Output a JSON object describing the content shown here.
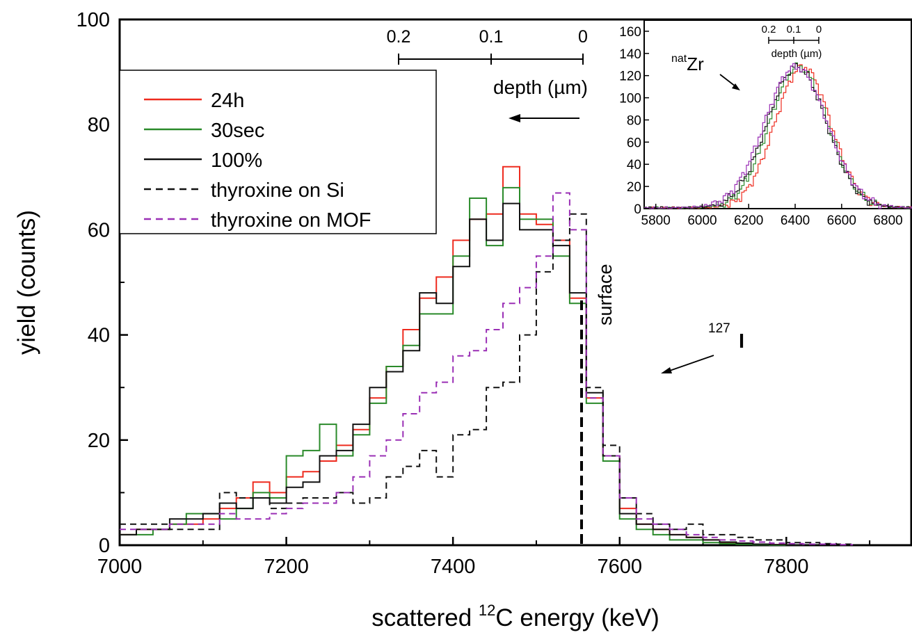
{
  "chart_data": [
    {
      "type": "line",
      "xlabel": "scattered ",
      "xlabel_sup": "12",
      "xlabel_rest": "C energy (keV)",
      "ylabel": "yield (counts)",
      "xlim": [
        7000,
        7950
      ],
      "ylim": [
        0,
        100
      ],
      "xticks": [
        "7000",
        "7200",
        "7400",
        "7600",
        "7800"
      ],
      "yticks": [
        "0",
        "20",
        "40",
        "60",
        "80",
        "100"
      ],
      "legend_position": "upper-left",
      "series": [
        {
          "name": "24h",
          "color": "#ee2b1f",
          "dash": "solid",
          "x": [
            7000,
            7020,
            7040,
            7060,
            7080,
            7100,
            7120,
            7140,
            7160,
            7180,
            7200,
            7220,
            7240,
            7260,
            7280,
            7300,
            7320,
            7340,
            7360,
            7380,
            7400,
            7420,
            7440,
            7460,
            7480,
            7500,
            7520,
            7540,
            7560,
            7580,
            7600,
            7620,
            7640,
            7660,
            7680,
            7700,
            7720,
            7740,
            7760,
            7780,
            7800
          ],
          "y": [
            2,
            3,
            3,
            4,
            4,
            5,
            7,
            9,
            12,
            10,
            13,
            14,
            16,
            19,
            22,
            28,
            34,
            41,
            47,
            51,
            58,
            62,
            63,
            72,
            63,
            61,
            58,
            47,
            28,
            17,
            7,
            4,
            3,
            2,
            1.5,
            1,
            0.5,
            0.3,
            0.2,
            0.1,
            0
          ]
        },
        {
          "name": "30sec",
          "color": "#2a8a2a",
          "dash": "solid",
          "x": [
            7000,
            7020,
            7040,
            7060,
            7080,
            7100,
            7120,
            7140,
            7160,
            7180,
            7200,
            7220,
            7240,
            7260,
            7280,
            7300,
            7320,
            7340,
            7360,
            7380,
            7400,
            7420,
            7440,
            7460,
            7480,
            7500,
            7520,
            7540,
            7560,
            7580,
            7600,
            7620,
            7640,
            7660,
            7680,
            7700,
            7720,
            7740,
            7760,
            7780,
            7800
          ],
          "y": [
            2,
            2,
            3,
            4,
            6,
            6,
            5,
            7,
            10,
            9,
            17,
            18,
            23,
            17,
            21,
            27,
            34,
            38,
            44,
            44,
            55,
            66,
            57,
            68,
            62,
            62,
            55,
            46,
            27,
            16,
            5,
            3,
            2,
            1,
            1,
            0.5,
            0.3,
            0.2,
            0.1,
            0,
            0
          ]
        },
        {
          "name": "100%",
          "color": "#111111",
          "dash": "solid",
          "x": [
            7000,
            7020,
            7040,
            7060,
            7080,
            7100,
            7120,
            7140,
            7160,
            7180,
            7200,
            7220,
            7240,
            7260,
            7280,
            7300,
            7320,
            7340,
            7360,
            7380,
            7400,
            7420,
            7440,
            7460,
            7480,
            7500,
            7520,
            7540,
            7560,
            7580,
            7600,
            7620,
            7640,
            7660,
            7680,
            7700,
            7720,
            7740,
            7760,
            7780,
            7800
          ],
          "y": [
            2,
            3,
            3,
            5,
            5,
            6,
            8,
            7,
            9,
            8,
            11,
            12,
            17,
            18,
            23,
            30,
            33,
            37,
            48,
            46,
            53,
            62,
            58,
            65,
            60,
            60,
            57,
            48,
            29,
            17,
            6,
            4,
            3,
            2,
            1.5,
            1,
            0.6,
            0.4,
            0.2,
            0.1,
            0
          ]
        },
        {
          "name": "thyroxine on Si",
          "color": "#111111",
          "dash": "dashed",
          "x": [
            7000,
            7020,
            7040,
            7060,
            7080,
            7100,
            7120,
            7140,
            7160,
            7180,
            7200,
            7220,
            7240,
            7260,
            7280,
            7300,
            7320,
            7340,
            7360,
            7380,
            7400,
            7420,
            7440,
            7460,
            7480,
            7500,
            7520,
            7540,
            7560,
            7580,
            7600,
            7620,
            7640,
            7660,
            7680,
            7700,
            7720,
            7740,
            7760,
            7780,
            7800,
            7820,
            7840,
            7860
          ],
          "y": [
            4,
            4,
            4,
            3,
            3,
            3,
            10,
            9,
            9,
            7,
            8,
            9,
            9,
            10,
            8,
            9,
            13,
            15,
            18,
            13,
            21,
            22,
            30,
            31,
            40,
            52,
            58,
            63,
            30,
            19,
            9,
            6,
            4,
            3,
            4,
            2,
            2,
            1.5,
            1,
            1,
            0.5,
            0.5,
            0.3,
            0.2
          ]
        },
        {
          "name": "thyroxine on MOF",
          "color": "#9a2fb5",
          "dash": "dashed",
          "x": [
            7000,
            7020,
            7040,
            7060,
            7080,
            7100,
            7120,
            7140,
            7160,
            7180,
            7200,
            7220,
            7240,
            7260,
            7280,
            7300,
            7320,
            7340,
            7360,
            7380,
            7400,
            7420,
            7440,
            7460,
            7480,
            7500,
            7520,
            7540,
            7560,
            7580,
            7600,
            7620,
            7640,
            7660,
            7680,
            7700,
            7720,
            7740,
            7760,
            7780,
            7800,
            7820,
            7840,
            7860
          ],
          "y": [
            3,
            3,
            3,
            4,
            4,
            4,
            6,
            5,
            5,
            6,
            7,
            8,
            8,
            10,
            13,
            17,
            20,
            25,
            29,
            31,
            36,
            37,
            41,
            46,
            49,
            55,
            67,
            60,
            28,
            17,
            9,
            5,
            4,
            3,
            2,
            1.5,
            1,
            0.8,
            0.6,
            0.4,
            0.3,
            0.2,
            0.2,
            0.1
          ]
        }
      ],
      "annotations": {
        "surface_label": "surface",
        "surface_energy": 7555,
        "iodine_mass": "127",
        "iodine_symbol": "I",
        "depth_label": "depth (µm)",
        "depth_ticks": [
          "0.2",
          "0.1",
          "0"
        ]
      }
    },
    {
      "type": "line",
      "xlim": [
        5750,
        6900
      ],
      "ylim": [
        0,
        170
      ],
      "xticks": [
        "5800",
        "6000",
        "6200",
        "6400",
        "6600",
        "6800"
      ],
      "yticks": [
        "0",
        "20",
        "40",
        "60",
        "80",
        "100",
        "120",
        "140",
        "160"
      ],
      "peak_label_sup": "nat",
      "peak_label": "Zr",
      "depth_label": "depth (µm)",
      "depth_ticks": [
        "0.2",
        "0.1",
        "0"
      ],
      "peak_center": 6410,
      "peak_height": 128,
      "series_colors": [
        "#ee2b1f",
        "#2a8a2a",
        "#111111",
        "#9a2fb5"
      ]
    }
  ]
}
